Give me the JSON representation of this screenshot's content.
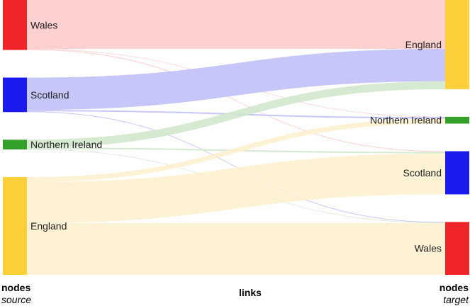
{
  "colors": {
    "Wales": "#f0252a",
    "Scotland": "#1a1aee",
    "Northern Ireland": "#33a02c",
    "England": "#fccf3b",
    "link_Wales": "#ffc8c8",
    "link_Scotland": "#bcbcf8",
    "link_Northern Ireland": "#cfe6c9",
    "link_England": "#fdf0cc"
  },
  "sources": [
    "Wales",
    "Scotland",
    "Northern Ireland",
    "England"
  ],
  "targets": [
    "England",
    "Northern Ireland",
    "Scotland",
    "Wales"
  ],
  "links": [
    {
      "source": "Wales",
      "target": "England",
      "value": 68
    },
    {
      "source": "Wales",
      "target": "Northern Ireland",
      "value": 0.5
    },
    {
      "source": "Wales",
      "target": "Scotland",
      "value": 1
    },
    {
      "source": "Scotland",
      "target": "England",
      "value": 45
    },
    {
      "source": "Scotland",
      "target": "Northern Ireland",
      "value": 2
    },
    {
      "source": "Scotland",
      "target": "Wales",
      "value": 1
    },
    {
      "source": "Northern Ireland",
      "target": "England",
      "value": 11
    },
    {
      "source": "Northern Ireland",
      "target": "Scotland",
      "value": 2
    },
    {
      "source": "Northern Ireland",
      "target": "Wales",
      "value": 0.5
    },
    {
      "source": "England",
      "target": "Northern Ireland",
      "value": 7
    },
    {
      "source": "England",
      "target": "Scotland",
      "value": 57
    },
    {
      "source": "England",
      "target": "Wales",
      "value": 72
    }
  ],
  "footer": {
    "left_title": "nodes",
    "left_sub": "source",
    "middle": "links",
    "right_title": "nodes",
    "right_sub": "target"
  }
}
